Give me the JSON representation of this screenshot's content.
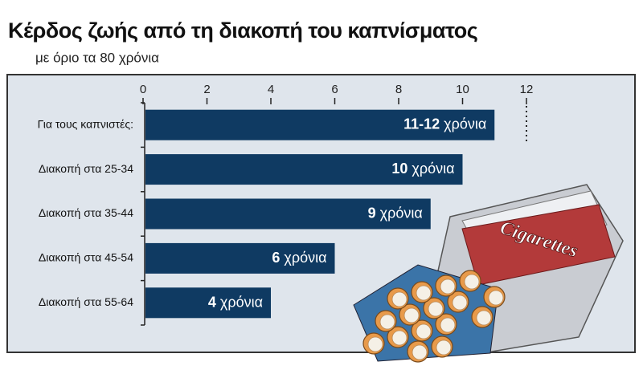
{
  "chart_data": {
    "type": "bar",
    "orientation": "horizontal",
    "title": "Κέρδος ζωής από τη διακοπή του καπνίσματος",
    "subtitle": "με όριο τα 80 χρόνια",
    "categories": [
      "Για τους καπνιστές:",
      "Διακοπή στα 25-34",
      "Διακοπή στα 35-44",
      "Διακοπή στα 45-54",
      "Διακοπή στα 55-64"
    ],
    "values": [
      11,
      10,
      9,
      6,
      4
    ],
    "value_labels": [
      "11-12 χρόνια",
      "10 χρόνια",
      "9 χρόνια",
      "6 χρόνια",
      "4 χρόνια"
    ],
    "color": "#0f3a62",
    "xlim": [
      0,
      12
    ],
    "xticks": [
      0,
      2,
      4,
      6,
      8,
      10,
      12
    ],
    "illustration_label": "Cigarettes"
  }
}
